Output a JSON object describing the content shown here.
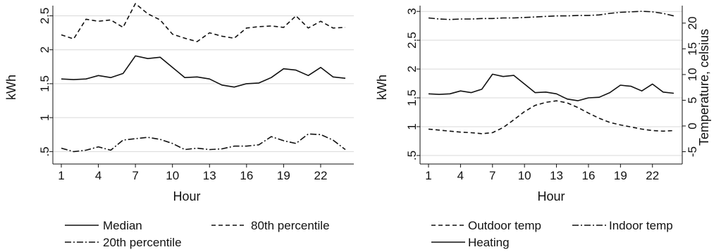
{
  "chart_data": [
    {
      "type": "line",
      "xlabel": "Hour",
      "ylabel": "kWh",
      "x": [
        1,
        2,
        3,
        4,
        5,
        6,
        7,
        8,
        9,
        10,
        11,
        12,
        13,
        14,
        15,
        16,
        17,
        18,
        19,
        20,
        21,
        22,
        23,
        24
      ],
      "xticks": [
        "1",
        "4",
        "7",
        "10",
        "13",
        "16",
        "19",
        "22"
      ],
      "yticks": [
        ".5",
        "1",
        "1.5",
        "2",
        "2.5"
      ],
      "ylim": [
        0.4,
        2.65
      ],
      "grid": "horizontal",
      "legend_position": "bottom",
      "series": [
        {
          "name": "Median",
          "dash": "solid",
          "values": [
            1.57,
            1.56,
            1.57,
            1.62,
            1.59,
            1.65,
            1.91,
            1.87,
            1.89,
            1.74,
            1.59,
            1.6,
            1.57,
            1.48,
            1.45,
            1.5,
            1.51,
            1.59,
            1.72,
            1.7,
            1.62,
            1.74,
            1.6,
            1.58
          ]
        },
        {
          "name": "80th percentile",
          "dash": "dashed",
          "values": [
            2.22,
            2.16,
            2.45,
            2.42,
            2.44,
            2.33,
            2.68,
            2.53,
            2.44,
            2.23,
            2.17,
            2.12,
            2.25,
            2.2,
            2.17,
            2.32,
            2.34,
            2.35,
            2.33,
            2.5,
            2.32,
            2.42,
            2.32,
            2.33
          ]
        },
        {
          "name": "20th percentile",
          "dash": "dashdot",
          "values": [
            0.55,
            0.5,
            0.52,
            0.57,
            0.52,
            0.67,
            0.69,
            0.71,
            0.68,
            0.62,
            0.53,
            0.55,
            0.53,
            0.54,
            0.58,
            0.58,
            0.6,
            0.72,
            0.66,
            0.62,
            0.76,
            0.75,
            0.67,
            0.53
          ]
        }
      ]
    },
    {
      "type": "line",
      "xlabel": "Hour",
      "ylabel": "kWh",
      "y2label": "Temperature, celsius",
      "x": [
        1,
        2,
        3,
        4,
        5,
        6,
        7,
        8,
        9,
        10,
        11,
        12,
        13,
        14,
        15,
        16,
        17,
        18,
        19,
        20,
        21,
        22,
        23,
        24
      ],
      "xticks": [
        "1",
        "4",
        "7",
        "10",
        "13",
        "16",
        "19",
        "22"
      ],
      "yticks": [
        ".5",
        "1",
        "1.5",
        "2",
        "2.5",
        "3"
      ],
      "ylim": [
        0.45,
        3.1
      ],
      "y2ticks": [
        "-5",
        "0",
        "5",
        "10",
        "15",
        "20"
      ],
      "y2lim": [
        -6.3,
        23.4
      ],
      "grid": "horizontal",
      "legend_position": "bottom",
      "series": [
        {
          "name": "Outdoor temp",
          "dash": "dashed",
          "axis": "right",
          "values": [
            -0.6,
            -0.8,
            -1.0,
            -1.2,
            -1.3,
            -1.5,
            -1.3,
            -0.3,
            1.2,
            2.8,
            4.0,
            4.6,
            4.9,
            4.5,
            3.6,
            2.5,
            1.5,
            0.7,
            0.2,
            -0.2,
            -0.6,
            -0.9,
            -1.0,
            -0.9
          ]
        },
        {
          "name": "Indoor temp",
          "dash": "dashdot",
          "axis": "right",
          "values": [
            21.0,
            20.8,
            20.7,
            20.8,
            20.8,
            20.9,
            20.9,
            21.0,
            21.0,
            21.1,
            21.2,
            21.3,
            21.4,
            21.4,
            21.5,
            21.5,
            21.6,
            21.9,
            22.1,
            22.2,
            22.3,
            22.2,
            21.9,
            21.4
          ]
        },
        {
          "name": "Heating",
          "dash": "solid",
          "axis": "left",
          "values": [
            1.57,
            1.56,
            1.57,
            1.62,
            1.59,
            1.65,
            1.91,
            1.87,
            1.89,
            1.74,
            1.59,
            1.6,
            1.57,
            1.48,
            1.45,
            1.5,
            1.51,
            1.59,
            1.72,
            1.7,
            1.62,
            1.74,
            1.6,
            1.58
          ]
        }
      ]
    }
  ]
}
